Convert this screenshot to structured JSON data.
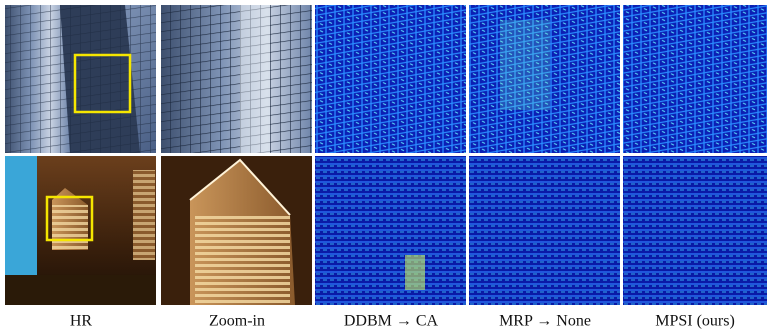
{
  "figure": {
    "captions": [
      "HR",
      "Zoom-in",
      "DDBM → CA",
      "MRP → None",
      "MPSI (ours)"
    ]
  }
}
